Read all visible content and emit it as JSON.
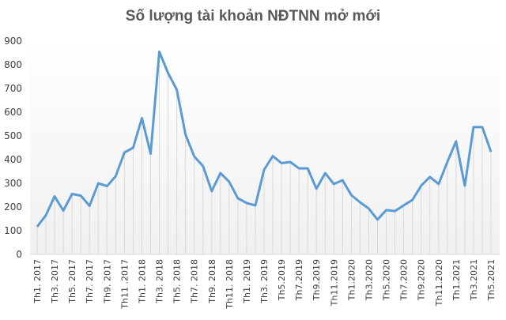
{
  "chart_data": {
    "type": "line",
    "title": "Số lượng tài khoản NĐTNN mở mới",
    "xlabel": "",
    "ylabel": "",
    "ylim": [
      0,
      900
    ],
    "yticks": [
      0,
      100,
      200,
      300,
      400,
      500,
      600,
      700,
      800,
      900
    ],
    "grid": false,
    "drop_lines": true,
    "line_color": "#5B9BD5",
    "x_tick_labels": [
      "Th1. 2017",
      "Th3. 2017",
      "Th5. 2017",
      "Th7. 2017",
      "Th9. 2017",
      "Th11 .2017",
      "Th1. 2018",
      "Th3. 2018",
      "Th5. 2018",
      "Th7. 2018",
      "Th9. 2018",
      "Th11. 2018",
      "Th1. 2019",
      "Th3. 2019",
      "Th5.2019",
      "Th7.2019",
      "Th9.2019",
      "Th11.2019",
      "Th1.2020",
      "Th3.2020",
      "Th5.2020",
      "Th7.2020",
      "Th9.2020",
      "Th11.2020",
      "Th1.2021",
      "Th3.2021",
      "Th5.2021"
    ],
    "series": [
      {
        "values": [
          117,
          165,
          245,
          185,
          255,
          248,
          205,
          300,
          288,
          330,
          430,
          450,
          575,
          425,
          855,
          765,
          695,
          505,
          413,
          373,
          267,
          343,
          307,
          237,
          217,
          207,
          357,
          415,
          385,
          390,
          363,
          363,
          277,
          343,
          297,
          313,
          250,
          220,
          193,
          147,
          187,
          183,
          207,
          230,
          290,
          327,
          297,
          390,
          477,
          290,
          537,
          537,
          433
        ]
      }
    ]
  }
}
